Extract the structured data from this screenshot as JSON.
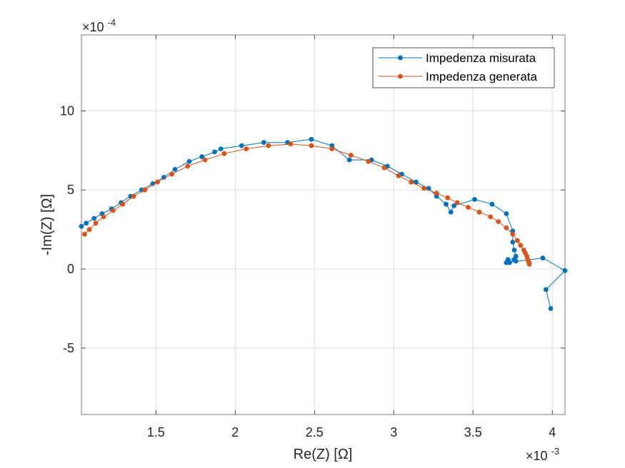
{
  "chart_data": {
    "type": "line",
    "title": "",
    "xlabel": "Re(Z) [Ω]",
    "ylabel": "-Im(Z) [Ω]",
    "x_exponent_label": "×10",
    "x_exponent": "-3",
    "y_exponent_label": "×10",
    "y_exponent": "-4",
    "xlim": [
      1.03,
      4.08
    ],
    "ylim": [
      -9.2,
      14.8
    ],
    "x_ticks": [
      1.5,
      2,
      2.5,
      3,
      3.5,
      4
    ],
    "x_tick_labels": [
      "1.5",
      "2",
      "2.5",
      "3",
      "3.5",
      "4"
    ],
    "y_ticks": [
      -5,
      0,
      5,
      10
    ],
    "y_tick_labels": [
      "-5",
      "0",
      "5",
      "10"
    ],
    "grid": true,
    "legend_placement": "top-right",
    "series": [
      {
        "name": "Impedenza misurata",
        "color": "#0072BD",
        "x": [
          1.03,
          1.06,
          1.11,
          1.16,
          1.22,
          1.28,
          1.34,
          1.41,
          1.48,
          1.55,
          1.62,
          1.71,
          1.79,
          1.87,
          1.91,
          2.04,
          2.18,
          2.33,
          2.48,
          2.61,
          2.72,
          2.86,
          2.96,
          3.05,
          3.14,
          3.22,
          3.27,
          3.33,
          3.36,
          3.38,
          3.51,
          3.62,
          3.71,
          3.75,
          3.75,
          3.76,
          3.77,
          3.76,
          3.77,
          3.73,
          3.76,
          3.72,
          3.71,
          3.94,
          4.08,
          3.96,
          3.99
        ],
        "y": [
          2.7,
          2.9,
          3.2,
          3.5,
          3.8,
          4.2,
          4.6,
          5.0,
          5.4,
          5.8,
          6.3,
          6.8,
          7.1,
          7.4,
          7.6,
          7.8,
          8.0,
          8.0,
          8.2,
          7.8,
          6.9,
          6.9,
          6.5,
          6.0,
          5.5,
          5.1,
          4.6,
          4.1,
          3.6,
          4.0,
          4.4,
          4.1,
          3.5,
          2.4,
          1.7,
          1.2,
          0.8,
          0.6,
          0.5,
          0.4,
          0.6,
          0.6,
          0.4,
          0.7,
          -0.1,
          -1.3,
          -2.5
        ]
      },
      {
        "name": "Impedenza generata",
        "color": "#D95319",
        "x": [
          1.05,
          1.08,
          1.12,
          1.17,
          1.23,
          1.29,
          1.36,
          1.43,
          1.51,
          1.6,
          1.7,
          1.81,
          1.93,
          2.07,
          2.21,
          2.35,
          2.48,
          2.61,
          2.73,
          2.84,
          2.94,
          3.03,
          3.11,
          3.19,
          3.27,
          3.34,
          3.4,
          3.47,
          3.54,
          3.61,
          3.66,
          3.71,
          3.75,
          3.78,
          3.8,
          3.82,
          3.83,
          3.84,
          3.845,
          3.85,
          3.853,
          3.855
        ],
        "y": [
          2.2,
          2.5,
          2.9,
          3.3,
          3.7,
          4.1,
          4.6,
          5.0,
          5.5,
          6.0,
          6.5,
          6.9,
          7.3,
          7.6,
          7.8,
          7.9,
          7.8,
          7.6,
          7.2,
          6.8,
          6.4,
          5.9,
          5.5,
          5.1,
          4.8,
          4.5,
          4.2,
          3.9,
          3.6,
          3.3,
          3.0,
          2.6,
          2.2,
          1.8,
          1.5,
          1.2,
          1.0,
          0.8,
          0.6,
          0.5,
          0.4,
          0.3
        ]
      }
    ]
  }
}
